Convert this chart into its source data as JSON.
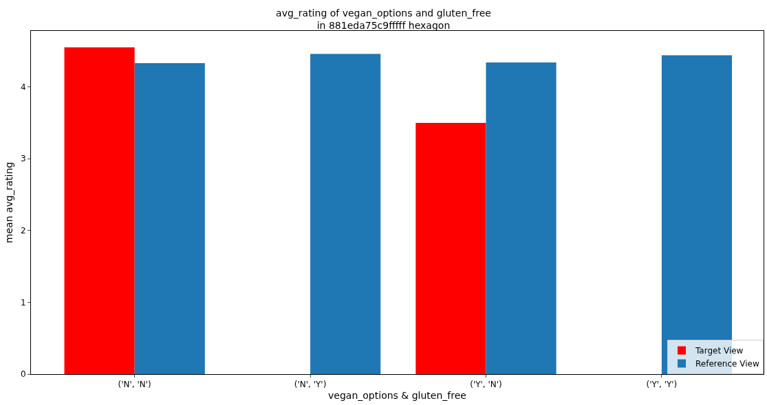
{
  "chart_data": {
    "type": "bar",
    "title": "avg_rating of vegan_options and gluten_free\nin 881eda75c9fffff hexagon",
    "xlabel": "vegan_options & gluten_free",
    "ylabel": "mean avg_rating",
    "categories": [
      "('N', 'N')",
      "('N', 'Y')",
      "('Y', 'N')",
      "('Y', 'Y')"
    ],
    "series": [
      {
        "name": "Target View",
        "color": "#ff0000",
        "values": [
          4.55,
          null,
          3.5,
          null
        ]
      },
      {
        "name": "Reference View",
        "color": "#1f77b4",
        "values": [
          4.33,
          4.46,
          4.34,
          4.44
        ]
      }
    ],
    "ylim": [
      0,
      4.78
    ],
    "yticks": [
      0,
      1,
      2,
      3,
      4
    ],
    "grid": false,
    "legend": "bottom right"
  }
}
